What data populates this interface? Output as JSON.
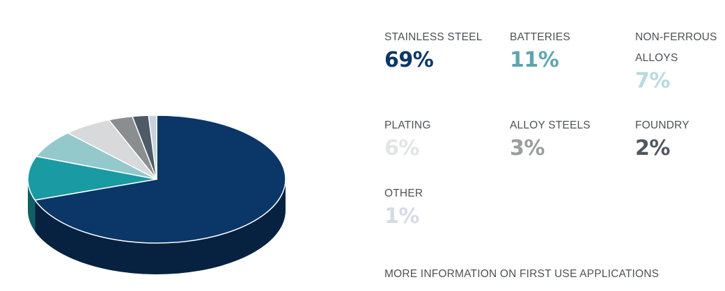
{
  "chart_data": {
    "type": "pie",
    "style": "3d",
    "slices": [
      {
        "label": "STAINLESS STEEL",
        "value": 69,
        "display": "69%",
        "color": "#0b3768",
        "label_color": "#0b3768"
      },
      {
        "label": "BATTERIES",
        "value": 11,
        "display": "11%",
        "color": "#1a9aa2",
        "label_color": "#5fa5b0"
      },
      {
        "label": "NON-FERROUS ALLOYS",
        "value": 7,
        "display": "7%",
        "color": "#94c9cc",
        "label_color": "#b8dbe0"
      },
      {
        "label": "PLATING",
        "value": 6,
        "display": "6%",
        "color": "#d8d9da",
        "label_color": "#e3e4e5"
      },
      {
        "label": "ALLOY STEELS",
        "value": 3,
        "display": "3%",
        "color": "#8b8e91",
        "label_color": "#9a9c9e"
      },
      {
        "label": "FOUNDRY",
        "value": 2,
        "display": "2%",
        "color": "#4e5b66",
        "label_color": "#4e565e"
      },
      {
        "label": "OTHER",
        "value": 1,
        "display": "1%",
        "color": "#c5d0e0",
        "label_color": "#d3dbe7"
      }
    ]
  },
  "links": {
    "more_info": "MORE INFORMATION ON FIRST USE APPLICATIONS"
  }
}
